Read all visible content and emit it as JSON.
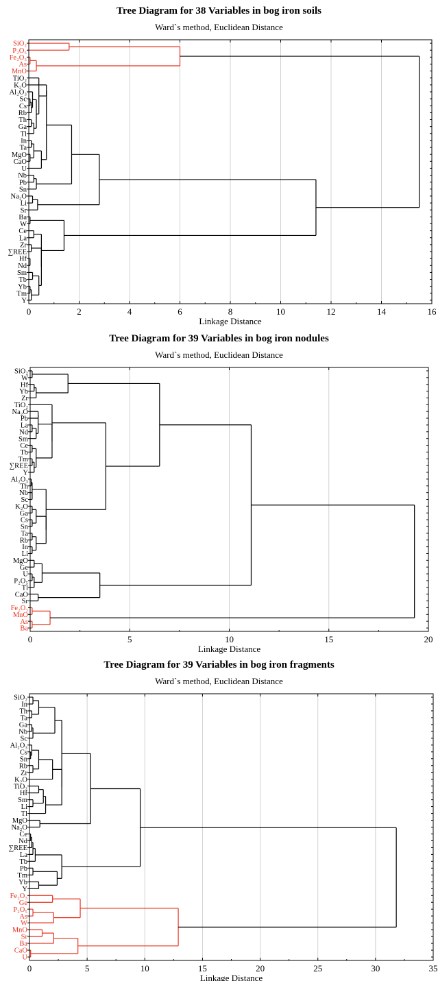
{
  "colors": {
    "highlight": "#e8321e",
    "default": "#000000",
    "grid": "#d0d0d0"
  },
  "chart_data": [
    {
      "type": "dendrogram",
      "title": "Tree Diagram for 38 Variables in bog iron soils",
      "subtitle": "Ward`s method, Euclidean Distance",
      "xlabel": "Linkage Distance",
      "xlim": [
        0,
        16
      ],
      "xticks": [
        0,
        2,
        4,
        6,
        8,
        10,
        12,
        14,
        16
      ],
      "grid": true,
      "leaves": [
        "SiO₂",
        "P₂O₅",
        "Fe₂O₃",
        "As",
        "MnO",
        "TiO₂",
        "K₂O",
        "Al₂O₃",
        "Sc",
        "Cs",
        "Rb",
        "Th",
        "Ga",
        "Tl",
        "In",
        "Ta",
        "MgO",
        "CaO",
        "U",
        "Nb",
        "Pb",
        "Sn",
        "Na₂O",
        "Li",
        "Sr",
        "Ba",
        "W",
        "Ce",
        "La",
        "Zr",
        "∑REE",
        "Hf",
        "Nd",
        "Sm",
        "Tb",
        "Yb",
        "Tm",
        "Y"
      ],
      "highlighted_leaves": [
        "SiO₂",
        "P₂O₅",
        "Fe₂O₃",
        "As",
        "MnO"
      ],
      "merges": [
        {
          "a": "SiO₂",
          "b": "P₂O₅",
          "height": 1.6
        },
        {
          "a": "Fe₂O₃",
          "b": "As",
          "height": 0.05
        },
        {
          "a": "Fe₂O₃+As",
          "b": "MnO",
          "height": 0.3
        },
        {
          "a": "SiO₂+P₂O₅",
          "b": "Fe₂O₃+As+MnO",
          "height": 6.0
        },
        {
          "a": "Sc",
          "b": "Cs",
          "height": 0.05
        },
        {
          "a": "Sc+Cs",
          "b": "Rb",
          "height": 0.1
        },
        {
          "a": "Al₂O₃",
          "b": "Sc+Cs+Rb",
          "height": 0.15
        },
        {
          "a": "Th",
          "b": "Ga",
          "height": 0.1
        },
        {
          "a": "Th+Ga",
          "b": "Tl",
          "height": 0.2
        },
        {
          "a": "Al₂O₃…Rb",
          "b": "Th+Ga+Tl",
          "height": 0.3
        },
        {
          "a": "TiO₂",
          "b": "…Tl",
          "height": 0.4
        },
        {
          "a": "K₂O",
          "b": "TiO₂…Tl",
          "height": 0.7
        },
        {
          "a": "MgO",
          "b": "CaO",
          "height": 0.05
        },
        {
          "a": "In",
          "b": "Ta",
          "height": 0.1
        },
        {
          "a": "In+Ta",
          "b": "MgO+CaO",
          "height": 0.2
        },
        {
          "a": "In…CaO",
          "b": "U",
          "height": 0.5
        },
        {
          "a": "TiO₂…Tl",
          "b": "In…U",
          "height": 0.7
        },
        {
          "a": "Nb",
          "b": "Pb",
          "height": 0.2
        },
        {
          "a": "Nb+Pb",
          "b": "Sn",
          "height": 0.3
        },
        {
          "a": "TiO₂…U",
          "b": "Nb+Pb+Sn",
          "height": 1.7
        },
        {
          "a": "Na₂O",
          "b": "Li",
          "height": 0.15
        },
        {
          "a": "Na₂O+Li",
          "b": "Sr",
          "height": 0.35
        },
        {
          "a": "TiO₂…Sn",
          "b": "Na₂O+Li+Sr",
          "height": 2.8
        },
        {
          "a": "Ce",
          "b": "La",
          "height": 0.2
        },
        {
          "a": "Zr",
          "b": "∑REE",
          "height": 0.1
        },
        {
          "a": "Hf",
          "b": "Nd",
          "height": 0.05
        },
        {
          "a": "Sm",
          "b": "Tb",
          "height": 0.15
        },
        {
          "a": "Yb",
          "b": "Tm",
          "height": 0.05
        },
        {
          "a": "Yb+Tm",
          "b": "Y",
          "height": 0.1
        },
        {
          "a": "Sm+Tb",
          "b": "Yb+Tm+Y",
          "height": 0.4
        },
        {
          "a": "Zr…Hf",
          "b": "Sm…Y",
          "height": 0.5
        },
        {
          "a": "Ce+La",
          "b": "Zr…Y",
          "height": 0.5
        },
        {
          "a": "Ba",
          "b": "W",
          "height": 0.05
        },
        {
          "a": "Ba+W",
          "b": "Ce…Y",
          "height": 1.4
        },
        {
          "a": "TiO₂…Sr",
          "b": "Ba…Y",
          "height": 11.4
        },
        {
          "a": "SiO₂…MnO",
          "b": "TiO₂…Y",
          "height": 15.5
        }
      ]
    },
    {
      "type": "dendrogram",
      "title": "Tree Diagram for 39 Variables in bog iron nodules",
      "subtitle": "Ward`s method, Euclidean Distance",
      "xlabel": "Linkage Distance",
      "xlim": [
        0,
        20
      ],
      "xticks": [
        0,
        5,
        10,
        15,
        20
      ],
      "grid": true,
      "leaves": [
        "SiO₂",
        "W",
        "Hf",
        "Yb",
        "Zr",
        "TiO₂",
        "Na₂O",
        "Pb",
        "La",
        "Nd",
        "Sm",
        "Ce",
        "Tb",
        "Tm",
        "∑REE",
        "Y",
        "Al₂O₃",
        "Th",
        "Nb",
        "Sc",
        "K₂O",
        "Ga",
        "Cs",
        "Sn",
        "Ta",
        "Rb",
        "In",
        "Li",
        "MgO",
        "Ge",
        "U",
        "P₂O₅",
        "Tl",
        "CaO",
        "Sr",
        "Fe₂O₃",
        "MnO",
        "As",
        "Ba"
      ],
      "highlighted_leaves": [
        "Fe₂O₃",
        "MnO",
        "As",
        "Ba"
      ],
      "merges": [
        {
          "a": "SiO₂",
          "b": "W",
          "height": 0.1
        },
        {
          "a": "Hf",
          "b": "Yb",
          "height": 0.2
        },
        {
          "a": "Hf+Yb",
          "b": "Zr",
          "height": 0.3
        },
        {
          "a": "SiO₂+W",
          "b": "Hf+Yb+Zr",
          "height": 1.9
        },
        {
          "a": "Na₂O",
          "b": "Pb",
          "height": 0.4
        },
        {
          "a": "La",
          "b": "Nd",
          "height": 0.1
        },
        {
          "a": "La+Nd",
          "b": "Sm",
          "height": 0.3
        },
        {
          "a": "Na₂O+Pb",
          "b": "La+Nd+Sm",
          "height": 0.4
        },
        {
          "a": "Ce",
          "b": "Tb",
          "height": 0.1
        },
        {
          "a": "Tm",
          "b": "∑REE",
          "height": 0.1
        },
        {
          "a": "Tm+∑REE",
          "b": "Y",
          "height": 0.2
        },
        {
          "a": "Ce+Tb",
          "b": "Tm…Y",
          "height": 0.3
        },
        {
          "a": "Na₂O…Sm",
          "b": "Ce…Y",
          "height": 1.1
        },
        {
          "a": "TiO₂",
          "b": "Na₂O…Y",
          "height": 1.1
        },
        {
          "a": "Al₂O₃",
          "b": "Th",
          "height": 0.05
        },
        {
          "a": "Nb",
          "b": "Sc",
          "height": 0.1
        },
        {
          "a": "Al₂O₃+Th",
          "b": "Nb+Sc",
          "height": 0.1
        },
        {
          "a": "K₂O",
          "b": "Ga",
          "height": 0.1
        },
        {
          "a": "Cs",
          "b": "Sn",
          "height": 0.1
        },
        {
          "a": "K₂O+Ga",
          "b": "Cs+Sn",
          "height": 0.3
        },
        {
          "a": "Ta",
          "b": "Rb",
          "height": 0.1
        },
        {
          "a": "In",
          "b": "Li",
          "height": 0.1
        },
        {
          "a": "Ta+Rb",
          "b": "In+Li",
          "height": 0.3
        },
        {
          "a": "K₂O…Sn",
          "b": "Ta…Li",
          "height": 0.8
        },
        {
          "a": "Al₂O₃…Sc",
          "b": "K₂O…Li",
          "height": 0.8
        },
        {
          "a": "TiO₂…Y",
          "b": "Al₂O₃…Li",
          "height": 3.8
        },
        {
          "a": "SiO₂…Zr",
          "b": "TiO₂…Li",
          "height": 6.5
        },
        {
          "a": "MgO",
          "b": "Ge",
          "height": 0.2
        },
        {
          "a": "U",
          "b": "P₂O₅",
          "height": 0.1
        },
        {
          "a": "U+P₂O₅",
          "b": "Tl",
          "height": 0.2
        },
        {
          "a": "MgO+Ge",
          "b": "U…Tl",
          "height": 0.6
        },
        {
          "a": "CaO",
          "b": "Sr",
          "height": 0.4
        },
        {
          "a": "MgO…Tl",
          "b": "CaO+Sr",
          "height": 3.5
        },
        {
          "a": "SiO₂…Li",
          "b": "MgO…Sr",
          "height": 11.1
        },
        {
          "a": "Fe₂O₃",
          "b": "MnO",
          "height": 0.1
        },
        {
          "a": "As",
          "b": "Ba",
          "height": 0.1
        },
        {
          "a": "Fe₂O₃+MnO",
          "b": "As+Ba",
          "height": 1.0
        },
        {
          "a": "SiO₂…Sr",
          "b": "Fe₂O₃…Ba",
          "height": 19.3
        }
      ]
    },
    {
      "type": "dendrogram",
      "title": "Tree Diagram for 39 Variables in bog iron fragments",
      "subtitle": "Ward`s method, Euclidean Distance",
      "xlabel": "Linkage Distance",
      "xlim": [
        0,
        35
      ],
      "xticks": [
        0,
        5,
        10,
        15,
        20,
        25,
        30,
        35
      ],
      "grid": true,
      "leaves": [
        "SiO₂",
        "In",
        "Th",
        "Ta",
        "Ga",
        "Nb",
        "Sc",
        "Al₂O₃",
        "Cs",
        "Sn",
        "Rb",
        "Zr",
        "K₂O",
        "TiO₂",
        "Hf",
        "Sm",
        "Li",
        "Tl",
        "MgO",
        "Na₂O",
        "Ce",
        "Nd",
        "∑REE",
        "La",
        "Tb",
        "Pb",
        "Tm",
        "Yb",
        "Y",
        "Fe₂O₃",
        "Ge",
        "P₂O₅",
        "As",
        "W",
        "MnO",
        "Sr",
        "Ba",
        "CaO",
        "U"
      ],
      "highlighted_leaves": [
        "Fe₂O₃",
        "Ge",
        "P₂O₅",
        "As",
        "W",
        "MnO",
        "Sr",
        "Ba",
        "CaO",
        "U"
      ],
      "merges": [
        {
          "a": "SiO₂",
          "b": "In",
          "height": 0.3
        },
        {
          "a": "Th",
          "b": "Ta",
          "height": 0.2
        },
        {
          "a": "SiO₂+In",
          "b": "Th+Ta",
          "height": 0.8
        },
        {
          "a": "Ga",
          "b": "Nb",
          "height": 0.2
        },
        {
          "a": "Ga+Nb",
          "b": "Sc",
          "height": 0.3
        },
        {
          "a": "SiO₂…Ta",
          "b": "Ga…Sc",
          "height": 2.2
        },
        {
          "a": "Cs",
          "b": "Sn",
          "height": 0.1
        },
        {
          "a": "Al₂O₃",
          "b": "Cs+Sn",
          "height": 0.2
        },
        {
          "a": "Rb",
          "b": "Zr",
          "height": 0.3
        },
        {
          "a": "Al₂O₃…Sn",
          "b": "Rb+Zr",
          "height": 0.8
        },
        {
          "a": "K₂O",
          "b": "Al₂O₃…Zr",
          "height": 2.0
        },
        {
          "a": "TiO₂",
          "b": "Hf",
          "height": 0.8
        },
        {
          "a": "Sm",
          "b": "Li",
          "height": 0.3
        },
        {
          "a": "TiO₂+Hf",
          "b": "Sm+Li",
          "height": 1.2
        },
        {
          "a": "TiO₂…Li",
          "b": "Tl",
          "height": 1.4
        },
        {
          "a": "K₂O…Zr",
          "b": "TiO₂…Tl",
          "height": 2.8
        },
        {
          "a": "SiO₂…Sc",
          "b": "K₂O…Tl",
          "height": 2.8
        },
        {
          "a": "MgO",
          "b": "Na₂O",
          "height": 0.9
        },
        {
          "a": "SiO₂…Tl",
          "b": "MgO+Na₂O",
          "height": 5.3
        },
        {
          "a": "Ce",
          "b": "Nd",
          "height": 0.1
        },
        {
          "a": "Ce+Nd",
          "b": "∑REE",
          "height": 0.2
        },
        {
          "a": "Ce…∑REE",
          "b": "La",
          "height": 0.3
        },
        {
          "a": "Ce…La",
          "b": "Tb",
          "height": 0.5
        },
        {
          "a": "Pb",
          "b": "Tm",
          "height": 0.3
        },
        {
          "a": "Yb",
          "b": "Y",
          "height": 0.8
        },
        {
          "a": "Pb+Tm",
          "b": "Yb+Y",
          "height": 2.4
        },
        {
          "a": "Ce…Tb",
          "b": "Pb…Y",
          "height": 2.8
        },
        {
          "a": "SiO₂…Na₂O",
          "b": "Ce…Y",
          "height": 9.6
        },
        {
          "a": "Fe₂O₃",
          "b": "Ge",
          "height": 2.0
        },
        {
          "a": "P₂O₅",
          "b": "As",
          "height": 0.3
        },
        {
          "a": "P₂O₅+As",
          "b": "W",
          "height": 2.1
        },
        {
          "a": "Fe₂O₃+Ge",
          "b": "P₂O₅…W",
          "height": 4.4
        },
        {
          "a": "MnO",
          "b": "Sr",
          "height": 1.1
        },
        {
          "a": "MnO+Sr",
          "b": "Ba",
          "height": 2.1
        },
        {
          "a": "CaO",
          "b": "U",
          "height": 0.1
        },
        {
          "a": "MnO…Ba",
          "b": "CaO+U",
          "height": 4.2
        },
        {
          "a": "Fe₂O₃…W",
          "b": "MnO…U",
          "height": 12.9
        },
        {
          "a": "SiO₂…Y",
          "b": "Fe₂O₃…U",
          "height": 31.8
        }
      ]
    }
  ]
}
